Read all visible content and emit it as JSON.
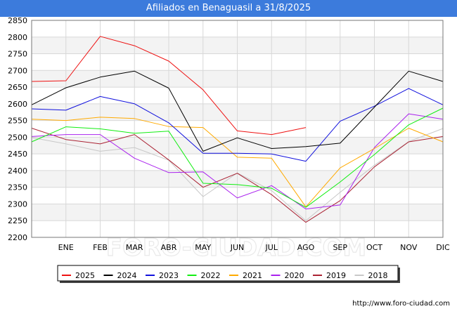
{
  "title": "Afiliados en Benaguasil a 31/8/2025",
  "watermark": "FORO-CIUDAD.COM",
  "footer": "http://www.foro-ciudad.com",
  "chart_data": {
    "type": "line",
    "title": "Afiliados en Benaguasil a 31/8/2025",
    "xlabel": "",
    "ylabel": "",
    "categories": [
      "",
      "ENE",
      "FEB",
      "MAR",
      "ABR",
      "MAY",
      "JUN",
      "JUL",
      "AGO",
      "SEP",
      "OCT",
      "NOV",
      "DIC"
    ],
    "ylim": [
      2200,
      2850
    ],
    "yticks": [
      2200,
      2250,
      2300,
      2350,
      2400,
      2450,
      2500,
      2550,
      2600,
      2650,
      2700,
      2750,
      2800,
      2850
    ],
    "grid": true,
    "legend_position": "bottom",
    "series": [
      {
        "name": "2025",
        "color": "#ee1111",
        "values": [
          2667,
          2669,
          2802,
          2774,
          2728,
          2642,
          2519,
          2508,
          2529,
          null,
          null,
          null,
          null
        ]
      },
      {
        "name": "2024",
        "color": "#000000",
        "values": [
          2597,
          2648,
          2680,
          2698,
          2647,
          2458,
          2498,
          2466,
          2472,
          2482,
          2590,
          2698,
          2667
        ]
      },
      {
        "name": "2023",
        "color": "#1111dd",
        "values": [
          2585,
          2581,
          2622,
          2600,
          2543,
          2452,
          2452,
          2450,
          2428,
          2548,
          2593,
          2646,
          2597
        ]
      },
      {
        "name": "2022",
        "color": "#11ee11",
        "values": [
          2486,
          2531,
          2525,
          2512,
          2518,
          2362,
          2358,
          2347,
          2290,
          2366,
          2448,
          2537,
          2587
        ]
      },
      {
        "name": "2021",
        "color": "#ffaa00",
        "values": [
          2554,
          2550,
          2560,
          2556,
          2532,
          2529,
          2440,
          2437,
          2291,
          2408,
          2466,
          2527,
          2486
        ]
      },
      {
        "name": "2020",
        "color": "#aa22ee",
        "values": [
          2502,
          2508,
          2508,
          2437,
          2394,
          2396,
          2318,
          2355,
          2285,
          2297,
          2469,
          2570,
          2554
        ]
      },
      {
        "name": "2019",
        "color": "#aa2233",
        "values": [
          2527,
          2493,
          2480,
          2508,
          2432,
          2350,
          2392,
          2328,
          2245,
          2310,
          2411,
          2486,
          2502
        ]
      },
      {
        "name": "2018",
        "color": "#c8c8c8",
        "values": [
          2499,
          2480,
          2458,
          2469,
          2431,
          2322,
          2393,
          2340,
          2250,
          2335,
          2416,
          2487,
          2526
        ]
      }
    ]
  }
}
